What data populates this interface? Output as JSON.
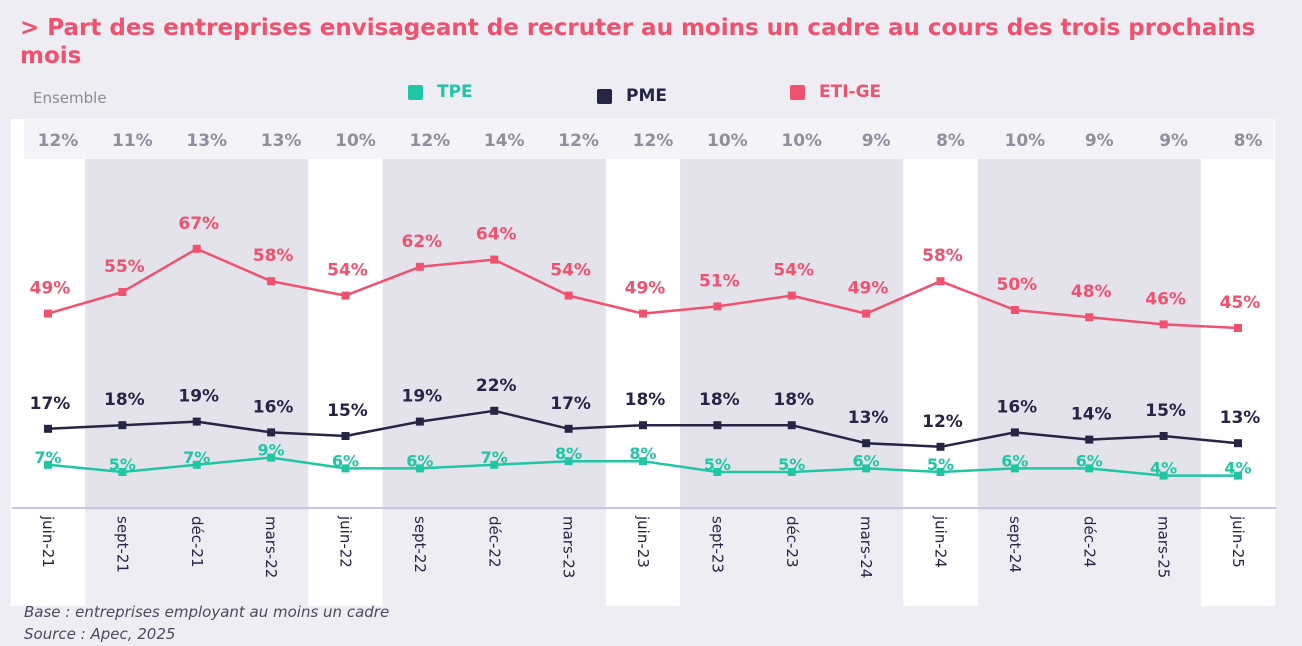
{
  "header": {
    "title": "> Part des entreprises envisageant de recruter au moins un cadre au cours des trois prochains mois",
    "subtitle": "Ensemble"
  },
  "legend": [
    {
      "label": "TPE",
      "color": "#20c5a4"
    },
    {
      "label": "PME",
      "color": "#262545"
    },
    {
      "label": "ETI-GE",
      "color": "#f0516f"
    }
  ],
  "footer": {
    "base": "Base : entreprises employant au moins un cadre",
    "source": "Source : Apec, 2025"
  },
  "chart_data": {
    "type": "line",
    "categories": [
      "juin-21",
      "sept-21",
      "déc-21",
      "mars-22",
      "juin-22",
      "sept-22",
      "déc-22",
      "mars-23",
      "juin-23",
      "sept-23",
      "déc-23",
      "mars-24",
      "juin-24",
      "sept-24",
      "déc-24",
      "mars-25",
      "juin-25"
    ],
    "ensemble": {
      "label": "Ensemble",
      "values": [
        12,
        11,
        13,
        13,
        10,
        12,
        14,
        12,
        12,
        10,
        10,
        9,
        8,
        10,
        9,
        9,
        8
      ]
    },
    "series": [
      {
        "name": "ETI-GE",
        "color": "#f0516f",
        "values": [
          49,
          55,
          67,
          58,
          54,
          62,
          64,
          54,
          49,
          51,
          54,
          49,
          58,
          50,
          48,
          46,
          45
        ]
      },
      {
        "name": "PME",
        "color": "#262545",
        "values": [
          17,
          18,
          19,
          16,
          15,
          19,
          22,
          17,
          18,
          18,
          18,
          13,
          12,
          16,
          14,
          15,
          13
        ]
      },
      {
        "name": "TPE",
        "color": "#20c5a4",
        "values": [
          7,
          5,
          7,
          9,
          6,
          6,
          7,
          8,
          8,
          5,
          5,
          6,
          5,
          6,
          6,
          4,
          4
        ]
      }
    ],
    "value_suffix": "%",
    "ylim": [
      0,
      75
    ],
    "grid": false
  }
}
